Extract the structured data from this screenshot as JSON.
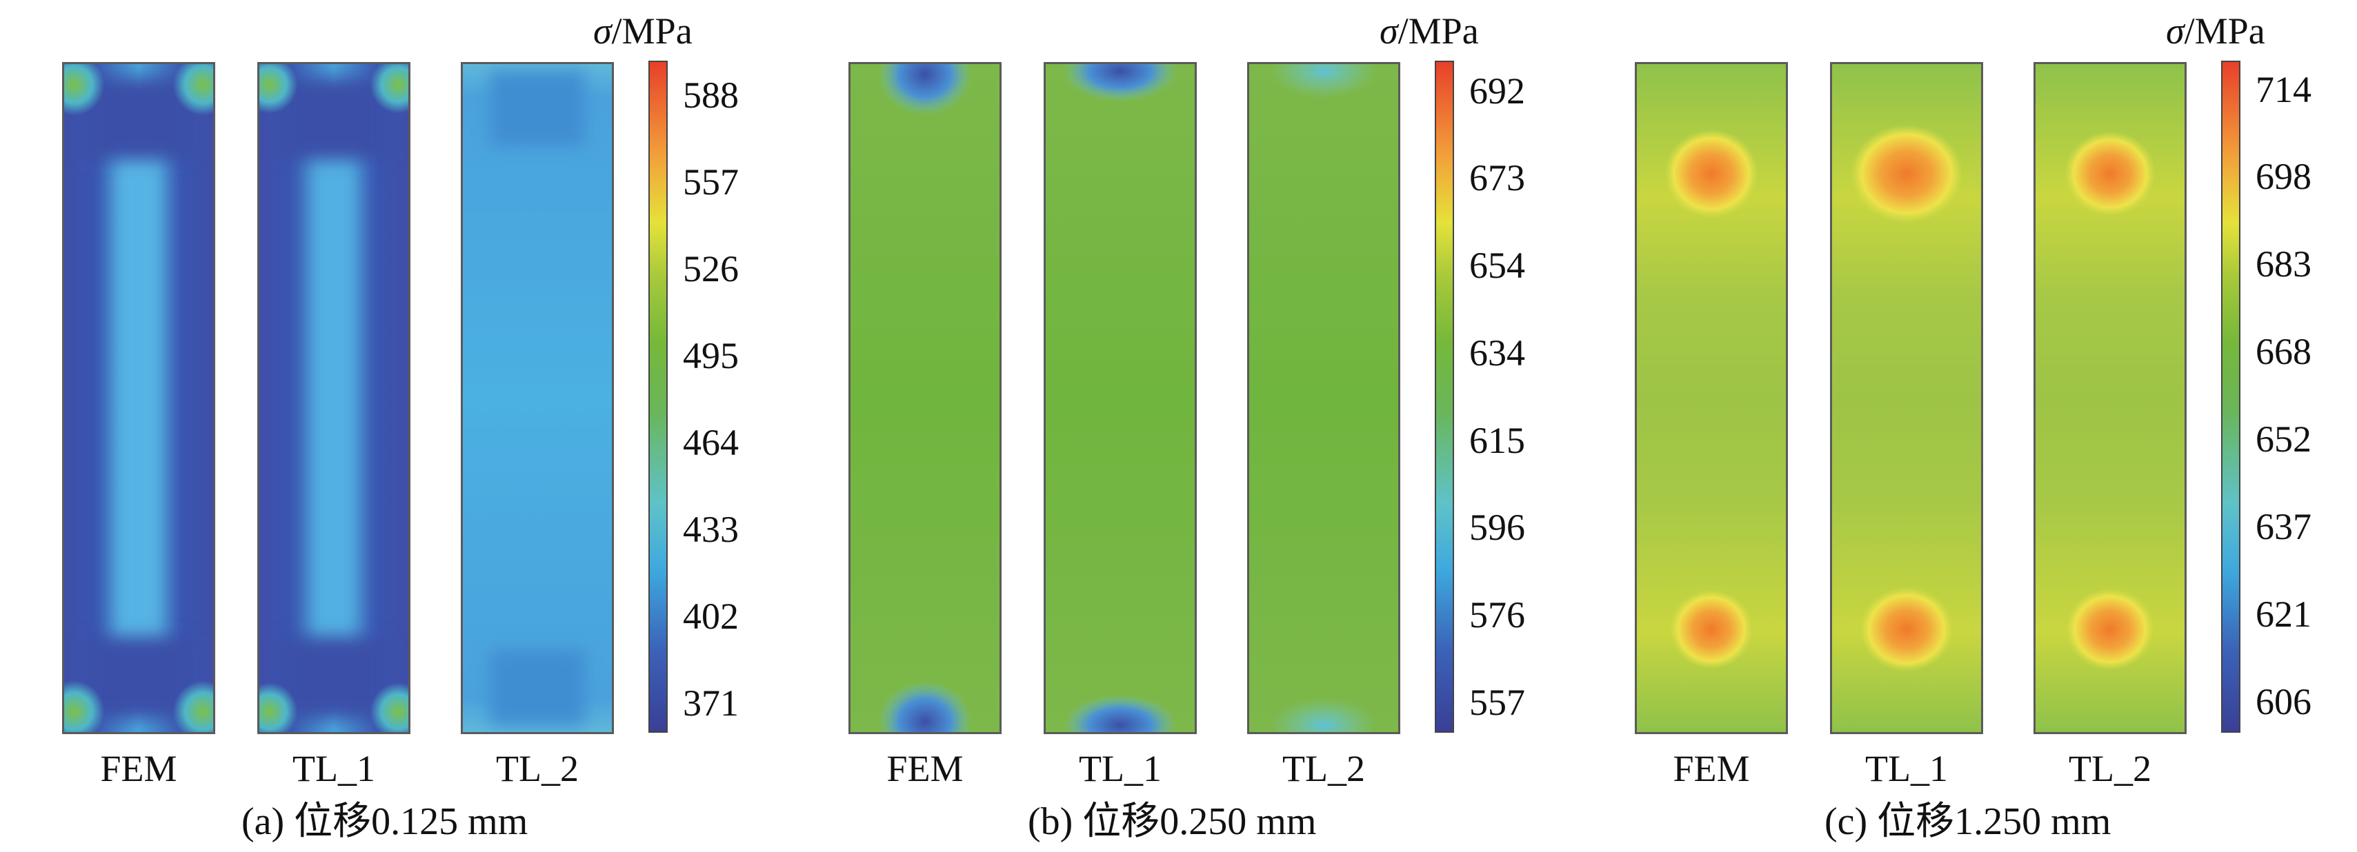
{
  "chart_data": [
    {
      "type": "heatmap",
      "caption": "(a) 位移0.125 mm",
      "unit_label": "/MPa",
      "unit_symbol": "σ",
      "samples": [
        "FEM",
        "TL_1",
        "TL_2"
      ],
      "colorbar_ticks": [
        "588",
        "557",
        "526",
        "495",
        "464",
        "433",
        "402",
        "371"
      ],
      "colorbar_range": [
        355,
        605
      ]
    },
    {
      "type": "heatmap",
      "caption": "(b) 位移0.250 mm",
      "unit_label": "/MPa",
      "unit_symbol": "σ",
      "samples": [
        "FEM",
        "TL_1",
        "TL_2"
      ],
      "colorbar_ticks": [
        "692",
        "673",
        "654",
        "634",
        "615",
        "596",
        "576",
        "557"
      ],
      "colorbar_range": [
        547,
        702
      ]
    },
    {
      "type": "heatmap",
      "caption": "(c)  位移1.250 mm",
      "unit_label": "/MPa",
      "unit_symbol": "σ",
      "samples": [
        "FEM",
        "TL_1",
        "TL_2"
      ],
      "colorbar_ticks": [
        "714",
        "698",
        "683",
        "668",
        "652",
        "637",
        "621",
        "606"
      ],
      "colorbar_range": [
        598,
        722
      ]
    }
  ]
}
